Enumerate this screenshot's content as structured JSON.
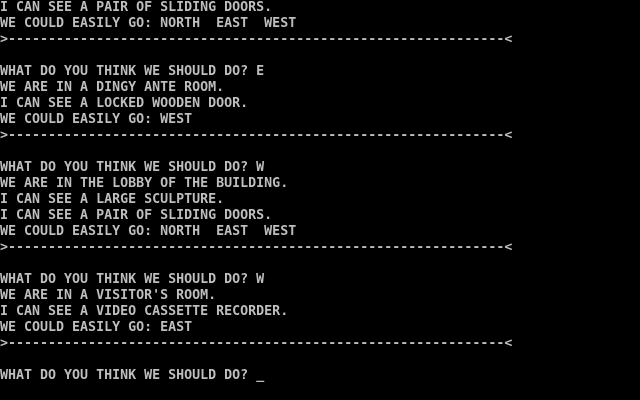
{
  "terminal": {
    "colors": {
      "background": "#000000",
      "foreground": "#bebebe"
    },
    "rows": [
      "I CAN SEE A PAIR OF SLIDING DOORS.",
      "WE COULD EASILY GO: NORTH  EAST  WEST",
      ">--------------------------------------------------------------<",
      "",
      "WHAT DO YOU THINK WE SHOULD DO? E",
      "WE ARE IN A DINGY ANTE ROOM.",
      "I CAN SEE A LOCKED WOODEN DOOR.",
      "WE COULD EASILY GO: WEST",
      ">--------------------------------------------------------------<",
      "",
      "WHAT DO YOU THINK WE SHOULD DO? W",
      "WE ARE IN THE LOBBY OF THE BUILDING.",
      "I CAN SEE A LARGE SCULPTURE.",
      "I CAN SEE A PAIR OF SLIDING DOORS.",
      "WE COULD EASILY GO: NORTH  EAST  WEST",
      ">--------------------------------------------------------------<",
      "",
      "WHAT DO YOU THINK WE SHOULD DO? W",
      "WE ARE IN A VISITOR'S ROOM.",
      "I CAN SEE A VIDEO CASSETTE RECORDER.",
      "WE COULD EASILY GO: EAST",
      ">--------------------------------------------------------------<",
      ""
    ],
    "prompt": "WHAT DO YOU THINK WE SHOULD DO? ",
    "cursor": "_"
  }
}
